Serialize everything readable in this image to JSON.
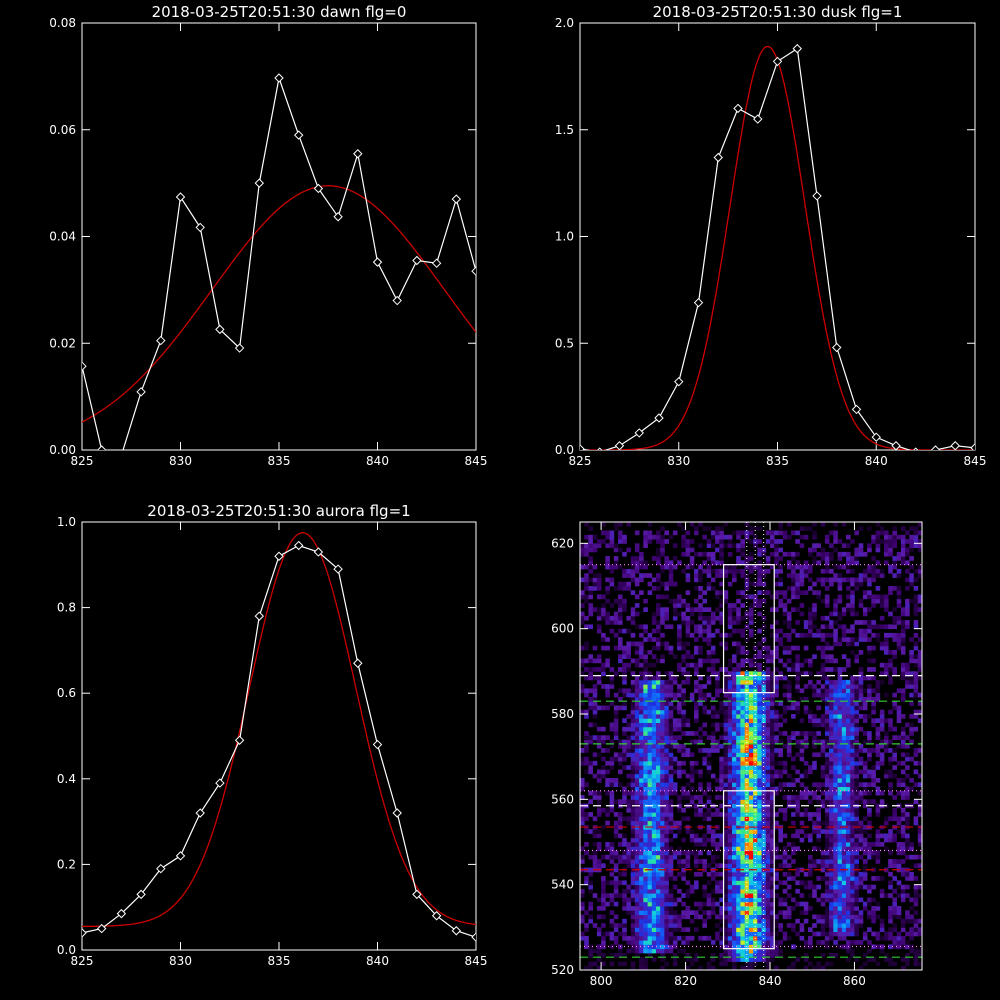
{
  "colors": {
    "background": "#000000",
    "axes": "#ffffff",
    "data": "#ffffff",
    "fit": "#cc0000"
  },
  "chart_data": [
    {
      "id": "dawn",
      "type": "line",
      "title": "2018-03-25T20:51:30 dawn flg=0",
      "xlim": [
        825,
        845
      ],
      "ylim": [
        0,
        0.08
      ],
      "xticks": [
        825,
        830,
        835,
        840,
        845
      ],
      "xtick_labels": [
        "825",
        "830",
        "835",
        "840",
        "845"
      ],
      "yticks": [
        0,
        0.02,
        0.04,
        0.06,
        0.08
      ],
      "ytick_labels": [
        "0.00",
        "0.02",
        "0.04",
        "0.06",
        "0.08"
      ],
      "series": [
        {
          "role": "data",
          "style": "white line with diamond markers",
          "x": [
            825,
            826,
            827,
            828,
            829,
            830,
            831,
            832,
            833,
            834,
            835,
            836,
            837,
            838,
            839,
            840,
            841,
            842,
            843,
            844,
            845
          ],
          "y": [
            0.0157,
            0.0,
            -0.001,
            0.0109,
            0.0205,
            0.0474,
            0.0417,
            0.0226,
            0.0191,
            0.05,
            0.0697,
            0.059,
            0.049,
            0.0437,
            0.0555,
            0.0352,
            0.028,
            0.0355,
            0.035,
            0.047,
            0.0335
          ]
        },
        {
          "role": "fit",
          "style": "red gaussian curve",
          "gaussian": {
            "amplitude": 0.0495,
            "center": 837.5,
            "sigma": 5.9,
            "offset": 0.0
          }
        }
      ]
    },
    {
      "id": "dusk",
      "type": "line",
      "title": "2018-03-25T20:51:30 dusk flg=1",
      "xlim": [
        825,
        845
      ],
      "ylim": [
        0,
        2.0
      ],
      "xticks": [
        825,
        830,
        835,
        840,
        845
      ],
      "xtick_labels": [
        "825",
        "830",
        "835",
        "840",
        "845"
      ],
      "yticks": [
        0,
        0.5,
        1.0,
        1.5,
        2.0
      ],
      "ytick_labels": [
        "0.0",
        "0.5",
        "1.0",
        "1.5",
        "2.0"
      ],
      "series": [
        {
          "role": "data",
          "style": "white line with diamond markers",
          "x": [
            825,
            826,
            827,
            828,
            829,
            830,
            831,
            832,
            833,
            834,
            835,
            836,
            837,
            838,
            839,
            840,
            841,
            842,
            843,
            844,
            845
          ],
          "y": [
            0.005,
            -0.01,
            0.02,
            0.08,
            0.15,
            0.32,
            0.69,
            1.37,
            1.6,
            1.55,
            1.82,
            1.88,
            1.19,
            0.48,
            0.19,
            0.06,
            0.02,
            -0.01,
            0.0,
            0.02,
            0.01
          ]
        },
        {
          "role": "fit",
          "style": "red gaussian curve",
          "gaussian": {
            "amplitude": 1.89,
            "center": 834.5,
            "sigma": 1.9,
            "offset": 0.0
          }
        }
      ]
    },
    {
      "id": "aurora",
      "type": "line",
      "title": "2018-03-25T20:51:30 aurora flg=1",
      "xlim": [
        825,
        845
      ],
      "ylim": [
        0,
        1.0
      ],
      "xticks": [
        825,
        830,
        835,
        840,
        845
      ],
      "xtick_labels": [
        "825",
        "830",
        "835",
        "840",
        "845"
      ],
      "yticks": [
        0,
        0.2,
        0.4,
        0.6,
        0.8,
        1.0
      ],
      "ytick_labels": [
        "0.0",
        "0.2",
        "0.4",
        "0.6",
        "0.8",
        "1.0"
      ],
      "series": [
        {
          "role": "data",
          "style": "white line with diamond markers",
          "x": [
            825,
            826,
            827,
            828,
            829,
            830,
            831,
            832,
            833,
            834,
            835,
            836,
            837,
            838,
            839,
            840,
            841,
            842,
            843,
            844,
            845
          ],
          "y": [
            0.04,
            0.05,
            0.085,
            0.13,
            0.19,
            0.22,
            0.32,
            0.39,
            0.49,
            0.78,
            0.92,
            0.945,
            0.93,
            0.89,
            0.67,
            0.48,
            0.32,
            0.13,
            0.08,
            0.045,
            0.03
          ]
        },
        {
          "role": "fit",
          "style": "red gaussian curve",
          "gaussian": {
            "amplitude": 0.92,
            "center": 836.2,
            "sigma": 2.7,
            "offset": 0.055
          }
        }
      ]
    },
    {
      "id": "spectrogram",
      "type": "heatmap",
      "title": "",
      "xlim": [
        795,
        876
      ],
      "ylim": [
        520,
        625
      ],
      "xticks": [
        800,
        820,
        840,
        860
      ],
      "xtick_labels": [
        "800",
        "820",
        "840",
        "860"
      ],
      "yticks": [
        520,
        540,
        560,
        580,
        600,
        620
      ],
      "ytick_labels": [
        "520",
        "540",
        "560",
        "580",
        "600",
        "620"
      ],
      "colormap": [
        "#000000",
        "#3a006a",
        "#5a1aa8",
        "#2030e0",
        "#1070ff",
        "#10c8e8",
        "#30e890",
        "#c8f020",
        "#ff9000",
        "#ff0000"
      ],
      "bands": [
        {
          "center": 812,
          "width": 2.3,
          "peak": 0.65,
          "y_range": [
            524,
            588
          ]
        },
        {
          "center": 835,
          "width": 2.6,
          "peak": 1.0,
          "y_range": [
            522,
            590
          ]
        },
        {
          "center": 857,
          "width": 2.0,
          "peak": 0.45,
          "y_range": [
            528,
            588
          ]
        }
      ],
      "boxes": [
        {
          "x": [
            829,
            841
          ],
          "y": [
            585,
            615
          ]
        },
        {
          "x": [
            829,
            841
          ],
          "y": [
            525,
            562
          ]
        }
      ],
      "vertical_dotted_lines": [
        834.5,
        836.5,
        838.5
      ],
      "horizontal_lines": [
        {
          "y": 615,
          "style": "dotted",
          "color": "#ff80ff"
        },
        {
          "y": 589,
          "style": "dashed",
          "color": "#ffffff"
        },
        {
          "y": 583,
          "style": "dashed",
          "color": "#30d030"
        },
        {
          "y": 573,
          "style": "dashed",
          "color": "#30d030"
        },
        {
          "y": 562,
          "style": "dotted",
          "color": "#ff80ff"
        },
        {
          "y": 558.5,
          "style": "dashed",
          "color": "#ffffff"
        },
        {
          "y": 553.5,
          "style": "dashed",
          "color": "#cc0000"
        },
        {
          "y": 548,
          "style": "dotted",
          "color": "#ff80ff"
        },
        {
          "y": 543.5,
          "style": "dashed",
          "color": "#cc0000"
        },
        {
          "y": 525.5,
          "style": "dotted",
          "color": "#ff80ff"
        },
        {
          "y": 523,
          "style": "dashed",
          "color": "#30d030"
        }
      ]
    }
  ]
}
